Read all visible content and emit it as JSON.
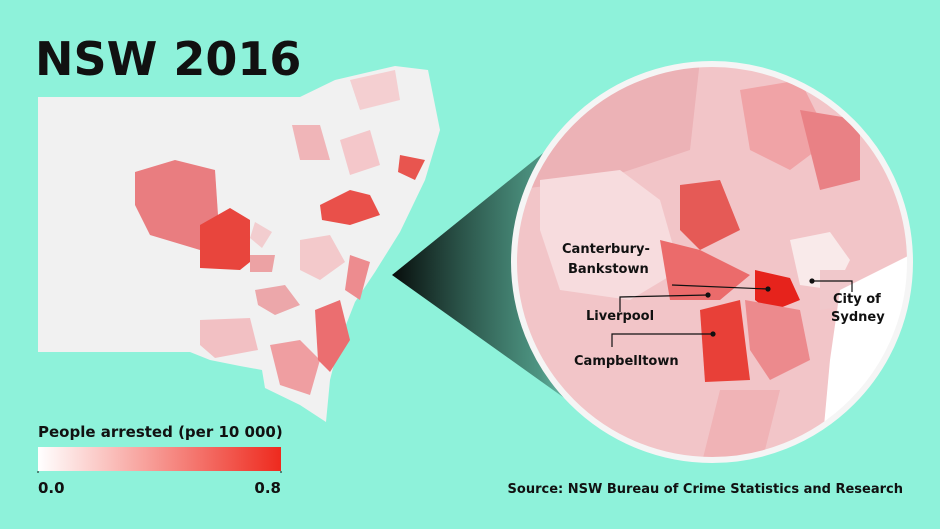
{
  "title": "NSW 2016",
  "legend": {
    "title": "People arrested (per 10 000)",
    "ticks": [
      {
        "value": 0,
        "label": "0.0"
      },
      {
        "value": 0.8,
        "label": "0.8"
      }
    ],
    "colors": [
      "#ffffff",
      "#ee2a1e"
    ]
  },
  "callouts": [
    {
      "lines": [
        "Canterbury-",
        "Bankstown"
      ]
    },
    {
      "lines": [
        "Liverpool"
      ]
    },
    {
      "lines": [
        "Campbelltown"
      ]
    },
    {
      "lines": [
        "City of",
        "Sydney"
      ]
    }
  ],
  "source": "Source: NSW Bureau of Crime Statistics and Research"
}
